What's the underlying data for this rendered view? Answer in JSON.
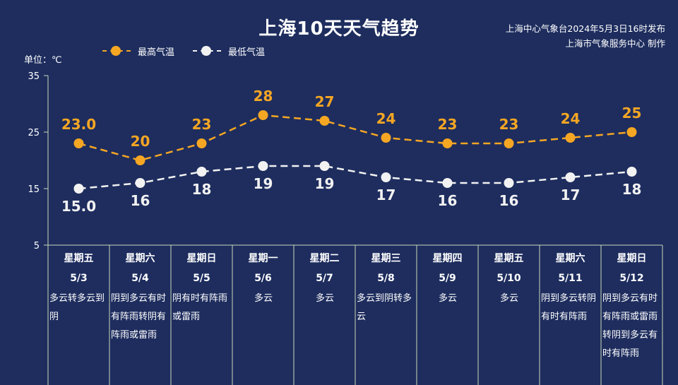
{
  "header": {
    "title": "上海10天天气趋势",
    "source_line1": "上海中心气象台2024年5月3日16时发布",
    "source_line2": "上海市气象服务中心  制作"
  },
  "chart_data": {
    "type": "line",
    "unit_label": "单位：℃",
    "ylim": [
      5,
      35
    ],
    "yticks": [
      5,
      15,
      25,
      35
    ],
    "categories": [
      "星期五 5/3",
      "星期六 5/4",
      "星期日 5/5",
      "星期一 5/6",
      "星期二 5/7",
      "星期三 5/8",
      "星期四 5/9",
      "星期五 5/10",
      "星期六 5/11",
      "星期日 5/12"
    ],
    "series": [
      {
        "name": "最高气温",
        "color": "#f5a623",
        "values": [
          23,
          20,
          23,
          28,
          27,
          24,
          23,
          23,
          24,
          25
        ],
        "labels": [
          "23.0",
          "20",
          "23",
          "28",
          "27",
          "24",
          "23",
          "23",
          "24",
          "25"
        ]
      },
      {
        "name": "最低气温",
        "color": "#f2f2f2",
        "values": [
          15,
          16,
          18,
          19,
          19,
          17,
          16,
          16,
          17,
          18
        ],
        "labels": [
          "15.0",
          "16",
          "18",
          "19",
          "19",
          "17",
          "16",
          "16",
          "17",
          "18"
        ]
      }
    ],
    "legend_position": "top-left"
  },
  "days": [
    {
      "weekday": "星期五",
      "date": "5/3",
      "weather": "多云转多云到阴"
    },
    {
      "weekday": "星期六",
      "date": "5/4",
      "weather": "阴到多云有时有阵雨转阴有阵雨或雷雨"
    },
    {
      "weekday": "星期日",
      "date": "5/5",
      "weather": "阴有时有阵雨或雷雨"
    },
    {
      "weekday": "星期一",
      "date": "5/6",
      "weather": "多云"
    },
    {
      "weekday": "星期二",
      "date": "5/7",
      "weather": "多云"
    },
    {
      "weekday": "星期三",
      "date": "5/8",
      "weather": "多云到阴转多云"
    },
    {
      "weekday": "星期四",
      "date": "5/9",
      "weather": "多云"
    },
    {
      "weekday": "星期五",
      "date": "5/10",
      "weather": "多云"
    },
    {
      "weekday": "星期六",
      "date": "5/11",
      "weather": "阴到多云转阴有时有阵雨"
    },
    {
      "weekday": "星期日",
      "date": "5/12",
      "weather": "阴到多云有时有阵雨或雷雨转阴到多云有时有阵雨"
    }
  ]
}
